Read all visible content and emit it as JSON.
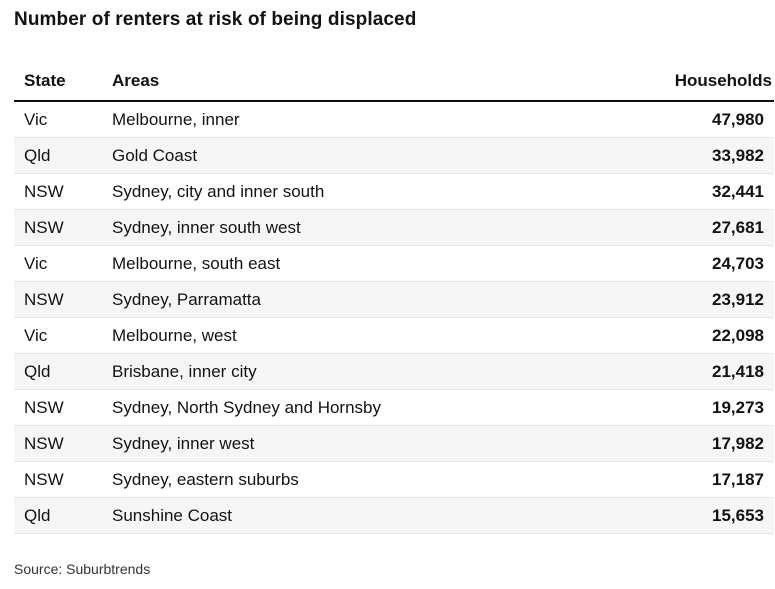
{
  "chart_data": {
    "type": "table",
    "title": "Number of renters at risk of being displaced",
    "columns": [
      "State",
      "Areas",
      "Households"
    ],
    "rows": [
      {
        "state": "Vic",
        "area": "Melbourne, inner",
        "households": "47,980"
      },
      {
        "state": "Qld",
        "area": "Gold Coast",
        "households": "33,982"
      },
      {
        "state": "NSW",
        "area": "Sydney, city and inner south",
        "households": "32,441"
      },
      {
        "state": "NSW",
        "area": "Sydney, inner south west",
        "households": "27,681"
      },
      {
        "state": "Vic",
        "area": "Melbourne, south east",
        "households": "24,703"
      },
      {
        "state": "NSW",
        "area": "Sydney, Parramatta",
        "households": "23,912"
      },
      {
        "state": "Vic",
        "area": "Melbourne, west",
        "households": "22,098"
      },
      {
        "state": "Qld",
        "area": "Brisbane, inner city",
        "households": "21,418"
      },
      {
        "state": "NSW",
        "area": "Sydney, North Sydney and Hornsby",
        "households": "19,273"
      },
      {
        "state": "NSW",
        "area": "Sydney, inner west",
        "households": "17,982"
      },
      {
        "state": "NSW",
        "area": "Sydney, eastern suburbs",
        "households": "17,187"
      },
      {
        "state": "Qld",
        "area": "Sunshine Coast",
        "households": "15,653"
      }
    ],
    "source": "Source: Suburbtrends"
  }
}
